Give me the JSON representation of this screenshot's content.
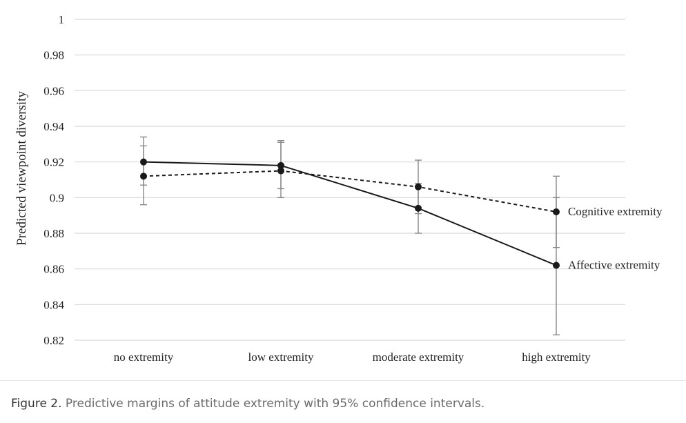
{
  "caption": {
    "label": "Figure 2.",
    "text": " Predictive margins of attitude extremity with 95% confidence intervals."
  },
  "chart_data": {
    "type": "line",
    "ylabel": "Predicted viewpoint diversity",
    "xlabel": "",
    "ylim": [
      0.82,
      1.0
    ],
    "yticks": [
      0.82,
      0.84,
      0.86,
      0.88,
      0.9,
      0.92,
      0.94,
      0.96,
      0.98,
      1
    ],
    "ytick_labels": [
      "0.82",
      "0.84",
      "0.86",
      "0.88",
      "0.9",
      "0.92",
      "0.94",
      "0.96",
      "0.98",
      "1"
    ],
    "grid": true,
    "categories": [
      "no extremity",
      "low extremity",
      "moderate extremity",
      "high extremity"
    ],
    "series": [
      {
        "name": "Cognitive extremity",
        "dash": "dashed",
        "values": [
          0.912,
          0.915,
          0.906,
          0.892
        ],
        "ci_low": [
          0.896,
          0.9,
          0.891,
          0.872
        ],
        "ci_high": [
          0.929,
          0.931,
          0.921,
          0.912
        ]
      },
      {
        "name": "Affective extremity",
        "dash": "solid",
        "values": [
          0.92,
          0.918,
          0.894,
          0.862
        ],
        "ci_low": [
          0.907,
          0.905,
          0.88,
          0.823
        ],
        "ci_high": [
          0.934,
          0.932,
          0.908,
          0.9
        ]
      }
    ],
    "colors": {
      "line": "#1a1a1a",
      "errorbar": "#888888",
      "grid": "#d9d9d9"
    }
  }
}
